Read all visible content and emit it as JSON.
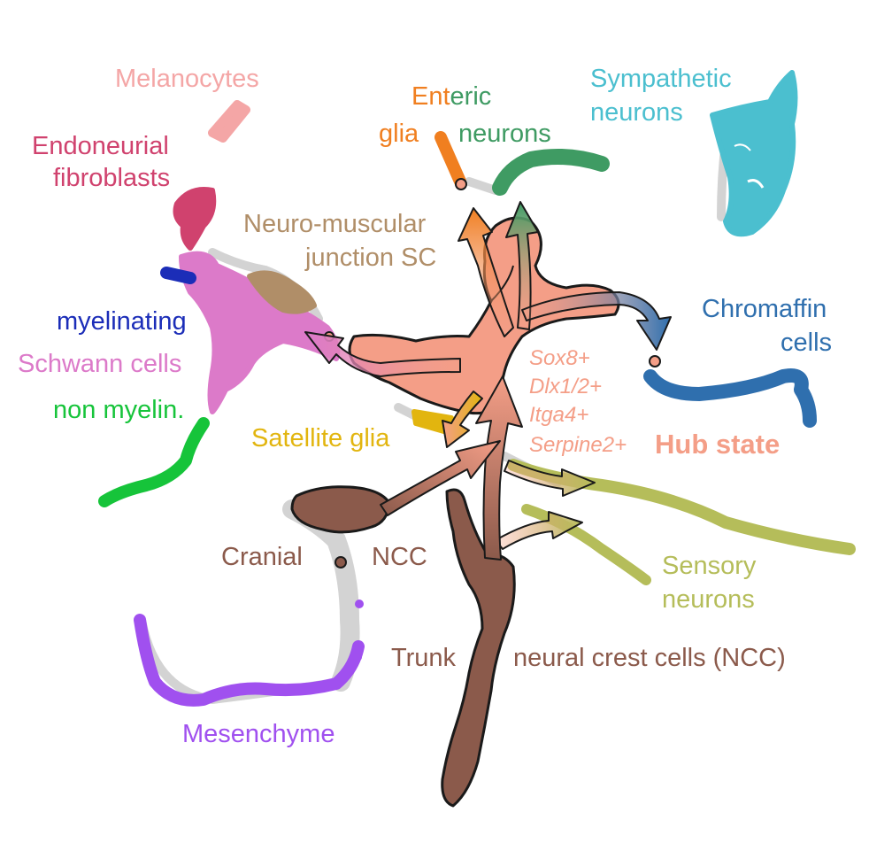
{
  "labels": {
    "melanocytes": "Melanocytes",
    "endoneurial_1": "Endoneurial",
    "endoneurial_2": "fibroblasts",
    "enteric_ent": "Ent",
    "enteric_eric": "eric",
    "enteric_glia": "glia",
    "enteric_neurons": "neurons",
    "sympathetic_1": "Sympathetic",
    "sympathetic_2": "neurons",
    "nmj_1": "Neuro-muscular",
    "nmj_2": "junction SC",
    "chromaffin_1": "Chromaffin",
    "chromaffin_2": "cells",
    "myelinating": "myelinating",
    "schwann": "Schwann cells",
    "nonmyelin": "non myelin.",
    "satellite": "Satellite glia",
    "markers": [
      "Sox8+",
      "Dlx1/2+",
      "Itga4+",
      "Serpine2+"
    ],
    "hub": "Hub state",
    "cranial": "Cranial",
    "ncc": "NCC",
    "sensory_1": "Sensory",
    "sensory_2": "neurons",
    "trunk": "Trunk",
    "trunk_ncc": "neural crest cells (NCC)",
    "mesenchyme": "Mesenchyme"
  },
  "colors": {
    "melanocytes": "#f4a6a6",
    "endoneurial": "#d0426e",
    "enteric_glia": "#f07f20",
    "enteric_neurons": "#3f9b63",
    "sympathetic": "#4bbfcf",
    "nmj": "#b08e68",
    "chromaffin": "#2f6fae",
    "myelinating": "#1b2db8",
    "schwann": "#dc7ac9",
    "nonmyelin": "#16c43a",
    "satellite": "#e2b50f",
    "hub": "#f49e87",
    "ncc": "#8b5a4b",
    "sensory": "#b5bd5a",
    "mesenchyme": "#a050ef",
    "background_cells": "#d3d3d3",
    "outline": "#1a1a1a"
  }
}
